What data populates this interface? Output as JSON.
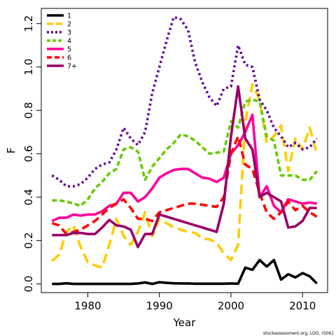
{
  "chart_data": {
    "type": "line",
    "xlabel": "Year",
    "ylabel": "F",
    "xlim": [
      1973.5,
      2013.5
    ],
    "ylim": [
      -0.04,
      1.27
    ],
    "x_ticks": [
      1980,
      1990,
      2000,
      2010
    ],
    "y_ticks": [
      0.0,
      0.2,
      0.4,
      0.6,
      0.8,
      1.0,
      1.2
    ],
    "x_tick_labels": [
      "1980",
      "1990",
      "2000",
      "2010"
    ],
    "y_tick_labels": [
      "0.0",
      "0.2",
      "0.4",
      "0.6",
      "0.8",
      "1.0",
      "1.2"
    ],
    "legend_position": "top-left",
    "credit": "stockassessment.org, LOO, r5061",
    "x": [
      1975,
      1976,
      1977,
      1978,
      1979,
      1980,
      1981,
      1982,
      1983,
      1984,
      1985,
      1986,
      1987,
      1988,
      1989,
      1990,
      1991,
      1992,
      1993,
      1994,
      1995,
      1996,
      1997,
      1998,
      1999,
      2000,
      2001,
      2002,
      2003,
      2004,
      2005,
      2006,
      2007,
      2008,
      2009,
      2010,
      2011,
      2012
    ],
    "series": [
      {
        "name": "1",
        "color": "#000000",
        "dash": "solid",
        "values": [
          0.0,
          0.0,
          0.003,
          0.0,
          0.0,
          0.0,
          0.0,
          0.0,
          0.0,
          0.0,
          0.0,
          0.0,
          0.002,
          0.007,
          0.0,
          0.008,
          0.005,
          0.003,
          0.002,
          0.002,
          0.001,
          0.001,
          0.001,
          0.001,
          0.001,
          0.002,
          0.001,
          0.075,
          0.065,
          0.11,
          0.08,
          0.11,
          0.02,
          0.045,
          0.03,
          0.05,
          0.035,
          0.002
        ]
      },
      {
        "name": "2",
        "color": "#FFCC00",
        "dash": "long",
        "values": [
          0.105,
          0.135,
          0.24,
          0.27,
          0.17,
          0.1,
          0.085,
          0.075,
          0.18,
          0.3,
          0.22,
          0.18,
          0.24,
          0.33,
          0.22,
          0.3,
          0.28,
          0.26,
          0.25,
          0.24,
          0.235,
          0.21,
          0.205,
          0.19,
          0.14,
          0.11,
          0.18,
          0.75,
          0.92,
          0.85,
          0.65,
          0.68,
          0.73,
          0.52,
          0.67,
          0.62,
          0.72,
          0.6
        ]
      },
      {
        "name": "3",
        "color": "#660099",
        "dash": "dot",
        "values": [
          0.5,
          0.48,
          0.45,
          0.45,
          0.46,
          0.49,
          0.53,
          0.55,
          0.56,
          0.62,
          0.72,
          0.67,
          0.64,
          0.7,
          0.88,
          1.0,
          1.12,
          1.23,
          1.22,
          1.17,
          1.02,
          0.93,
          0.86,
          0.82,
          0.9,
          0.91,
          1.1,
          1.01,
          1.0,
          0.85,
          0.8,
          0.72,
          0.68,
          0.63,
          0.65,
          0.62,
          0.63,
          0.67
        ]
      },
      {
        "name": "4",
        "color": "#66CC00",
        "dash": "shortdash",
        "values": [
          0.385,
          0.385,
          0.38,
          0.37,
          0.36,
          0.39,
          0.44,
          0.47,
          0.51,
          0.53,
          0.62,
          0.63,
          0.61,
          0.48,
          0.54,
          0.58,
          0.62,
          0.65,
          0.69,
          0.68,
          0.66,
          0.63,
          0.6,
          0.605,
          0.61,
          0.75,
          0.72,
          0.84,
          0.85,
          0.84,
          0.68,
          0.66,
          0.5,
          0.5,
          0.5,
          0.48,
          0.48,
          0.52
        ]
      },
      {
        "name": "5",
        "color": "#FF0099",
        "dash": "solid",
        "values": [
          0.29,
          0.305,
          0.305,
          0.32,
          0.315,
          0.32,
          0.32,
          0.335,
          0.36,
          0.37,
          0.42,
          0.42,
          0.38,
          0.4,
          0.44,
          0.49,
          0.51,
          0.525,
          0.53,
          0.53,
          0.51,
          0.49,
          0.485,
          0.47,
          0.49,
          0.6,
          0.64,
          0.7,
          0.78,
          0.4,
          0.45,
          0.36,
          0.33,
          0.39,
          0.38,
          0.37,
          0.375,
          0.37
        ]
      },
      {
        "name": "6",
        "color": "#FF0000",
        "dash": "dash",
        "values": [
          0.28,
          0.27,
          0.23,
          0.24,
          0.25,
          0.27,
          0.29,
          0.32,
          0.35,
          0.37,
          0.39,
          0.35,
          0.3,
          0.3,
          0.29,
          0.33,
          0.34,
          0.35,
          0.36,
          0.37,
          0.37,
          0.365,
          0.36,
          0.355,
          0.4,
          0.6,
          0.68,
          0.55,
          0.53,
          0.42,
          0.33,
          0.3,
          0.33,
          0.38,
          0.34,
          0.36,
          0.33,
          0.31
        ]
      },
      {
        "name": "7+",
        "color": "#990066",
        "dash": "solid",
        "values": [
          0.225,
          0.225,
          0.225,
          0.235,
          0.235,
          0.23,
          0.23,
          0.26,
          0.295,
          0.27,
          0.265,
          0.25,
          0.17,
          0.23,
          0.23,
          0.32,
          0.31,
          0.3,
          0.29,
          0.28,
          0.27,
          0.26,
          0.25,
          0.24,
          0.37,
          0.68,
          0.91,
          0.67,
          0.62,
          0.4,
          0.42,
          0.4,
          0.38,
          0.26,
          0.265,
          0.29,
          0.35,
          0.35
        ]
      }
    ]
  }
}
